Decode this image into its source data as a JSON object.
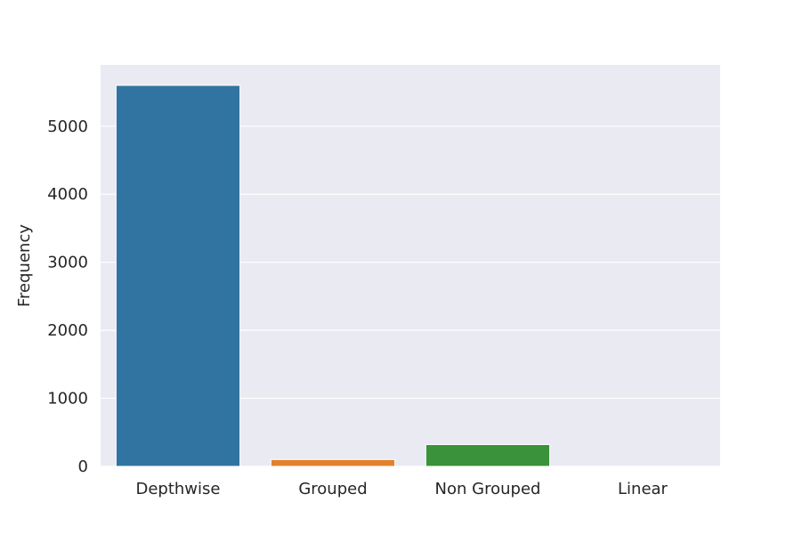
{
  "chart_data": {
    "type": "bar",
    "title": "",
    "xlabel": "",
    "ylabel": "Frequency",
    "categories": [
      "Depthwise",
      "Grouped",
      "Non Grouped",
      "Linear"
    ],
    "values": [
      5600,
      100,
      320,
      0
    ],
    "colors": [
      "#3274a1",
      "#e1812c",
      "#3a923a",
      "#c03d3e"
    ],
    "ylim": [
      0,
      5900
    ],
    "yticks": [
      0,
      1000,
      2000,
      3000,
      4000,
      5000
    ],
    "grid": true,
    "background": "#eaeaf2",
    "grid_color": "#ffffff"
  }
}
